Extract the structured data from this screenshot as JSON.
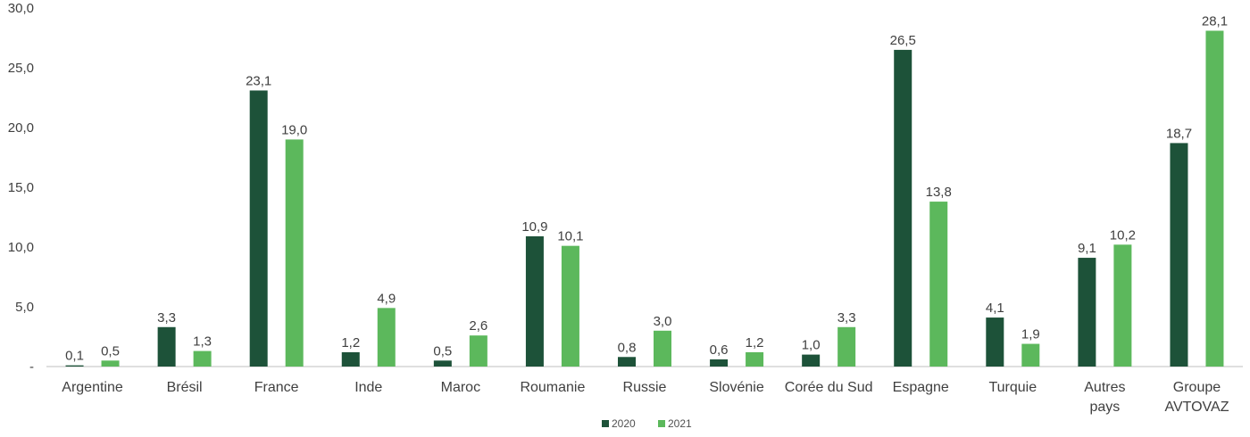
{
  "chart_data": {
    "type": "bar",
    "title": "",
    "xlabel": "",
    "ylabel": "",
    "ylim": [
      0,
      30
    ],
    "yticks": [
      "-",
      "5,0",
      "10,0",
      "15,0",
      "20,0",
      "25,0",
      "30,0"
    ],
    "grid": false,
    "legend_position": "bottom",
    "categories": [
      [
        "Argentine"
      ],
      [
        "Brésil"
      ],
      [
        "France"
      ],
      [
        "Inde"
      ],
      [
        "Maroc"
      ],
      [
        "Roumanie"
      ],
      [
        "Russie"
      ],
      [
        "Slovénie"
      ],
      [
        "Corée du Sud"
      ],
      [
        "Espagne"
      ],
      [
        "Turquie"
      ],
      [
        "Autres",
        "pays"
      ],
      [
        "Groupe",
        "AVTOVAZ"
      ]
    ],
    "series": [
      {
        "name": "2020",
        "color": "#1d5239",
        "values": [
          0.1,
          3.3,
          23.1,
          1.2,
          0.5,
          10.9,
          0.8,
          0.6,
          1.0,
          26.5,
          4.1,
          9.1,
          18.7
        ],
        "labels": [
          "0,1",
          "3,3",
          "23,1",
          "1,2",
          "0,5",
          "10,9",
          "0,8",
          "0,6",
          "1,0",
          "26,5",
          "4,1",
          "9,1",
          "18,7"
        ]
      },
      {
        "name": "2021",
        "color": "#5cb85c",
        "values": [
          0.5,
          1.3,
          19.0,
          4.9,
          2.6,
          10.1,
          3.0,
          1.2,
          3.3,
          13.8,
          1.9,
          10.2,
          28.1
        ],
        "labels": [
          "0,5",
          "1,3",
          "19,0",
          "4,9",
          "2,6",
          "10,1",
          "3,0",
          "1,2",
          "3,3",
          "13,8",
          "1,9",
          "10,2",
          "28,1"
        ]
      }
    ]
  }
}
